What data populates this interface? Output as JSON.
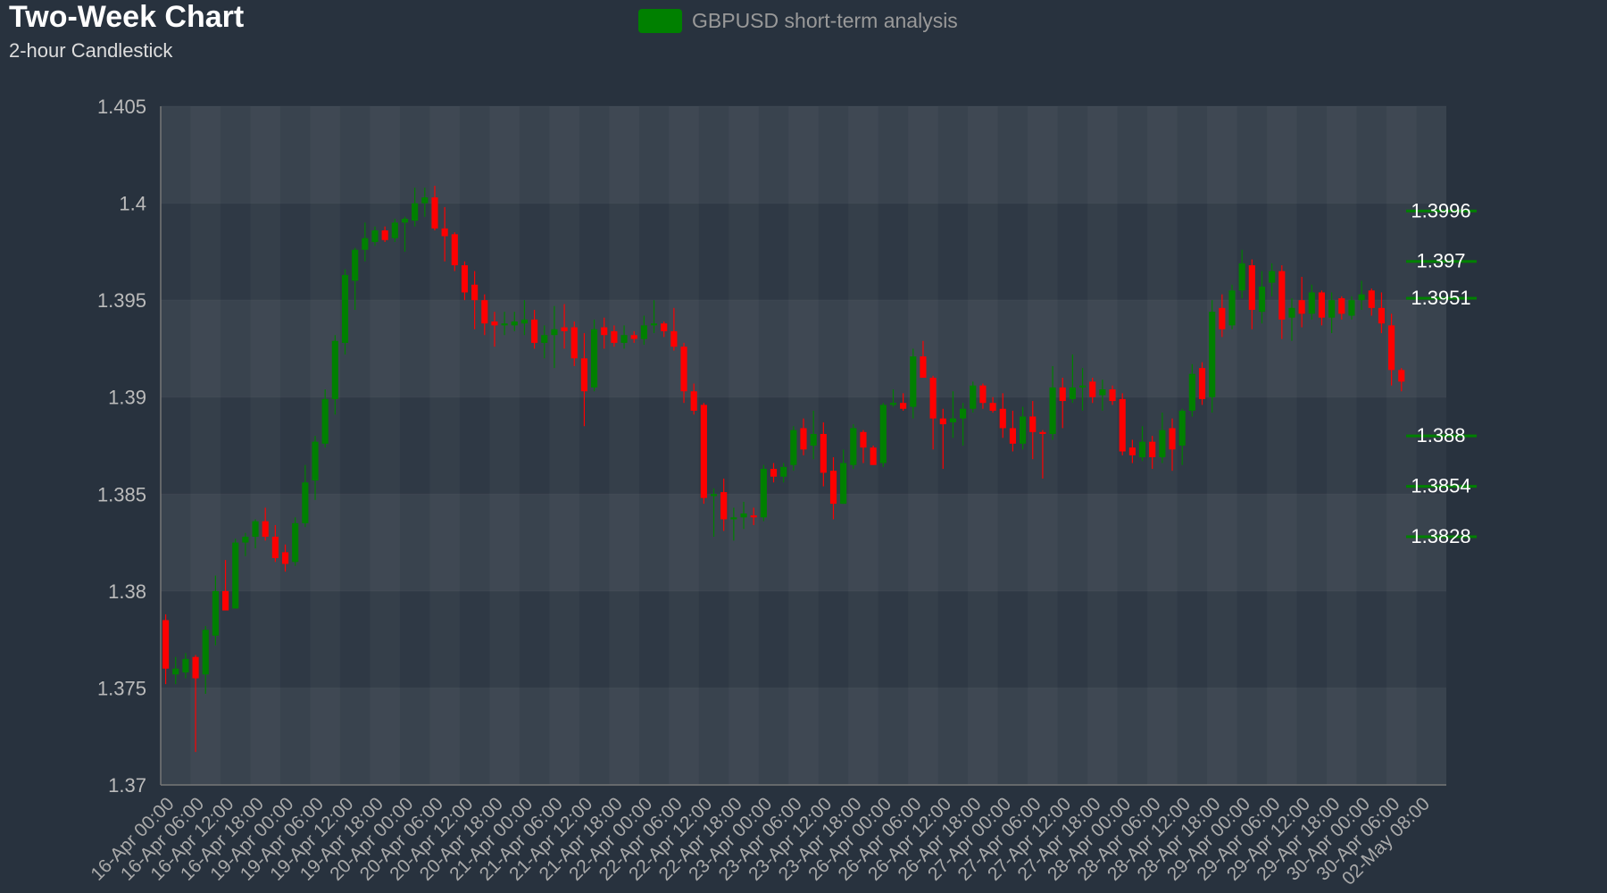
{
  "chart_data": {
    "type": "candlestick",
    "title": "Two-Week Chart",
    "subtitle": "2-hour Candlestick",
    "categories": [
      "16-Apr 00:00",
      null,
      null,
      "16-Apr 06:00",
      null,
      null,
      "16-Apr 12:00",
      null,
      null,
      "16-Apr 18:00",
      null,
      null,
      "19-Apr 00:00",
      null,
      null,
      "19-Apr 06:00",
      null,
      null,
      "19-Apr 12:00",
      null,
      null,
      "19-Apr 18:00",
      null,
      null,
      "20-Apr 00:00",
      null,
      null,
      "20-Apr 06:00",
      null,
      null,
      "20-Apr 12:00",
      null,
      null,
      "20-Apr 18:00",
      null,
      null,
      "21-Apr 00:00",
      null,
      null,
      "21-Apr 06:00",
      null,
      null,
      "21-Apr 12:00",
      null,
      null,
      "21-Apr 18:00",
      null,
      null,
      "22-Apr 00:00",
      null,
      null,
      "22-Apr 06:00",
      null,
      null,
      "22-Apr 12:00",
      null,
      null,
      "22-Apr 18:00",
      null,
      null,
      "23-Apr 00:00",
      null,
      null,
      "23-Apr 06:00",
      null,
      null,
      "23-Apr 12:00",
      null,
      null,
      "23-Apr 18:00",
      null,
      null,
      "26-Apr 00:00",
      null,
      null,
      "26-Apr 06:00",
      null,
      null,
      "26-Apr 12:00",
      null,
      null,
      "26-Apr 18:00",
      null,
      null,
      "27-Apr 00:00",
      null,
      null,
      "27-Apr 06:00",
      null,
      null,
      "27-Apr 12:00",
      null,
      null,
      "27-Apr 18:00",
      null,
      null,
      "28-Apr 00:00",
      null,
      null,
      "28-Apr 06:00",
      null,
      null,
      "28-Apr 12:00",
      null,
      null,
      "28-Apr 18:00",
      null,
      null,
      "29-Apr 00:00",
      null,
      null,
      "29-Apr 06:00",
      null,
      null,
      "29-Apr 12:00",
      null,
      null,
      "29-Apr 18:00",
      null,
      null,
      "30-Apr 00:00",
      null,
      null,
      "30-Apr 06:00",
      null,
      null,
      "02-May 08:00",
      null,
      null
    ],
    "series": [
      {
        "name": "GBPUSD short-term analysis",
        "color": "#008000",
        "down_color": "#ff0000",
        "open": [
          1.3785,
          1.3757,
          1.3758,
          1.3766,
          1.3757,
          1.3777,
          1.38,
          1.3791,
          1.3825,
          1.3828,
          1.3836,
          1.3828,
          1.382,
          1.3815,
          1.3835,
          1.3857,
          1.3876,
          1.3899,
          1.3928,
          1.396,
          1.3976,
          1.398,
          1.3986,
          1.3982,
          1.399,
          1.3991,
          1.4,
          1.4003,
          1.3987,
          1.3984,
          1.3968,
          1.3958,
          1.395,
          1.3939,
          1.3937,
          1.3937,
          1.3938,
          1.394,
          1.3928,
          1.3932,
          1.3936,
          1.3936,
          1.392,
          1.3905,
          1.3936,
          1.3934,
          1.3928,
          1.3932,
          1.393,
          1.3937,
          1.3938,
          1.3934,
          1.3926,
          1.3903,
          1.3896,
          1.3849,
          1.3851,
          1.3837,
          1.3838,
          1.3839,
          1.3838,
          1.3863,
          1.3859,
          1.3865,
          1.3884,
          1.3875,
          1.3881,
          1.3862,
          1.3845,
          1.3865,
          1.3882,
          1.3874,
          1.3866,
          1.3896,
          1.3897,
          1.3895,
          1.3921,
          1.391,
          1.3889,
          1.3887,
          1.3889,
          1.3894,
          1.3906,
          1.3897,
          1.3894,
          1.3884,
          1.3876,
          1.389,
          1.3882,
          1.3881,
          1.3905,
          1.3899,
          1.3905,
          1.3908,
          1.3901,
          1.3904,
          1.3899,
          1.3874,
          1.3869,
          1.3877,
          1.3869,
          1.3884,
          1.3875,
          1.3893,
          1.3915,
          1.39,
          1.3946,
          1.3937,
          1.3955,
          1.3968,
          1.3944,
          1.3959,
          1.3965,
          1.3941,
          1.395,
          1.3943,
          1.3954,
          1.3941,
          1.3951,
          1.3942,
          1.395,
          1.3955,
          1.3946,
          1.3937,
          1.3914,
          null,
          null,
          null,
          null
        ],
        "high": [
          1.3788,
          1.3766,
          1.3768,
          1.3767,
          1.3782,
          1.3808,
          1.3816,
          1.3827,
          1.383,
          1.3837,
          1.3843,
          1.3834,
          1.3824,
          1.3838,
          1.3865,
          1.388,
          1.3904,
          1.3932,
          1.3966,
          1.3977,
          1.399,
          1.3988,
          1.3988,
          1.3992,
          1.3993,
          1.4008,
          1.4008,
          1.4009,
          1.3998,
          1.3985,
          1.397,
          1.3965,
          1.3953,
          1.3944,
          1.3944,
          1.3944,
          1.395,
          1.3945,
          1.3937,
          1.3947,
          1.3948,
          1.3939,
          1.3933,
          1.394,
          1.3941,
          1.3937,
          1.3937,
          1.3934,
          1.3942,
          1.395,
          1.3939,
          1.3946,
          1.3928,
          1.3907,
          1.3897,
          1.3853,
          1.3858,
          1.3843,
          1.3846,
          1.3843,
          1.3865,
          1.3866,
          1.3866,
          1.3885,
          1.3889,
          1.3893,
          1.3887,
          1.3869,
          1.3873,
          1.3886,
          1.3883,
          1.3875,
          1.3897,
          1.3904,
          1.3902,
          1.3925,
          1.3929,
          1.3911,
          1.3894,
          1.3903,
          1.3897,
          1.3908,
          1.3907,
          1.39,
          1.3902,
          1.3893,
          1.3895,
          1.3898,
          1.3883,
          1.3916,
          1.391,
          1.3922,
          1.3915,
          1.391,
          1.3909,
          1.3906,
          1.3902,
          1.3878,
          1.3885,
          1.388,
          1.3892,
          1.3889,
          1.3894,
          1.3917,
          1.3918,
          1.395,
          1.3953,
          1.3958,
          1.3976,
          1.3971,
          1.3965,
          1.3969,
          1.3968,
          1.3951,
          1.3962,
          1.3958,
          1.3955,
          1.3954,
          1.3952,
          1.3952,
          1.396,
          1.3956,
          1.3954,
          1.3943,
          1.3915,
          null,
          null,
          null,
          null
        ],
        "low": [
          1.3752,
          1.3752,
          1.3755,
          1.3717,
          1.3747,
          1.3772,
          1.379,
          1.3791,
          1.3818,
          1.3822,
          1.3826,
          1.3815,
          1.381,
          1.3813,
          1.3833,
          1.3847,
          1.3874,
          1.3891,
          1.3922,
          1.3945,
          1.397,
          1.3978,
          1.398,
          1.398,
          1.3975,
          1.3988,
          1.3993,
          1.3986,
          1.397,
          1.3965,
          1.395,
          1.3935,
          1.3932,
          1.3926,
          1.3932,
          1.3934,
          1.3932,
          1.3925,
          1.392,
          1.3915,
          1.3925,
          1.3916,
          1.3885,
          1.3903,
          1.3925,
          1.3926,
          1.3925,
          1.3928,
          1.3927,
          1.3933,
          1.3931,
          1.3924,
          1.3897,
          1.3891,
          1.3845,
          1.3828,
          1.3831,
          1.3826,
          1.3832,
          1.3834,
          1.3836,
          1.3856,
          1.3856,
          1.3862,
          1.387,
          1.3868,
          1.3854,
          1.3837,
          1.3845,
          1.3863,
          1.3866,
          1.3865,
          1.3864,
          1.3895,
          1.3893,
          1.3889,
          1.391,
          1.3873,
          1.3863,
          1.3879,
          1.3875,
          1.3892,
          1.3894,
          1.3892,
          1.3879,
          1.3872,
          1.3873,
          1.3868,
          1.3858,
          1.3878,
          1.3884,
          1.3897,
          1.3893,
          1.3897,
          1.3893,
          1.3896,
          1.387,
          1.3866,
          1.3867,
          1.3863,
          1.3866,
          1.3862,
          1.3865,
          1.389,
          1.3896,
          1.3892,
          1.3931,
          1.3935,
          1.3951,
          1.3935,
          1.3938,
          1.3952,
          1.393,
          1.3929,
          1.3936,
          1.394,
          1.3937,
          1.3933,
          1.394,
          1.394,
          1.3945,
          1.3942,
          1.3933,
          1.3906,
          1.3903,
          null,
          null,
          null,
          null
        ],
        "close": [
          1.376,
          1.376,
          1.3765,
          1.3755,
          1.378,
          1.38,
          1.379,
          1.3825,
          1.3828,
          1.3836,
          1.3828,
          1.3817,
          1.3814,
          1.3835,
          1.3856,
          1.3877,
          1.3899,
          1.3929,
          1.3963,
          1.3976,
          1.3982,
          1.3986,
          1.3981,
          1.399,
          1.3992,
          1.4,
          1.4003,
          1.3987,
          1.3983,
          1.3968,
          1.3954,
          1.395,
          1.3938,
          1.3937,
          1.3938,
          1.3939,
          1.394,
          1.3928,
          1.3932,
          1.3935,
          1.3934,
          1.392,
          1.3903,
          1.3935,
          1.3932,
          1.3928,
          1.3932,
          1.393,
          1.3937,
          1.3938,
          1.3934,
          1.3926,
          1.3903,
          1.3893,
          1.3848,
          1.385,
          1.3837,
          1.3838,
          1.384,
          1.3838,
          1.3863,
          1.3859,
          1.3864,
          1.3883,
          1.3873,
          1.3881,
          1.3861,
          1.3845,
          1.3866,
          1.3884,
          1.3874,
          1.3865,
          1.3896,
          1.3897,
          1.3894,
          1.3921,
          1.391,
          1.3889,
          1.3886,
          1.3889,
          1.3894,
          1.3906,
          1.3897,
          1.3893,
          1.3884,
          1.3876,
          1.389,
          1.3882,
          1.3881,
          1.3905,
          1.3898,
          1.3905,
          1.3906,
          1.39,
          1.3904,
          1.3898,
          1.3872,
          1.387,
          1.3877,
          1.3869,
          1.3883,
          1.3873,
          1.3893,
          1.3912,
          1.3899,
          1.3944,
          1.3935,
          1.3955,
          1.3969,
          1.3945,
          1.3957,
          1.3965,
          1.394,
          1.3946,
          1.3943,
          1.3954,
          1.3941,
          1.395,
          1.3943,
          1.395,
          1.3953,
          1.3946,
          1.3938,
          1.3914,
          1.3908,
          null,
          null,
          null,
          null
        ]
      }
    ],
    "levels": [
      1.3996,
      1.397,
      1.3951,
      1.388,
      1.3854,
      1.3828
    ],
    "level_color": "#008000",
    "ylim": [
      1.37,
      1.405
    ],
    "yticks": [
      1.37,
      1.375,
      1.38,
      1.385,
      1.39,
      1.395,
      1.4,
      1.405
    ],
    "grid": true
  }
}
